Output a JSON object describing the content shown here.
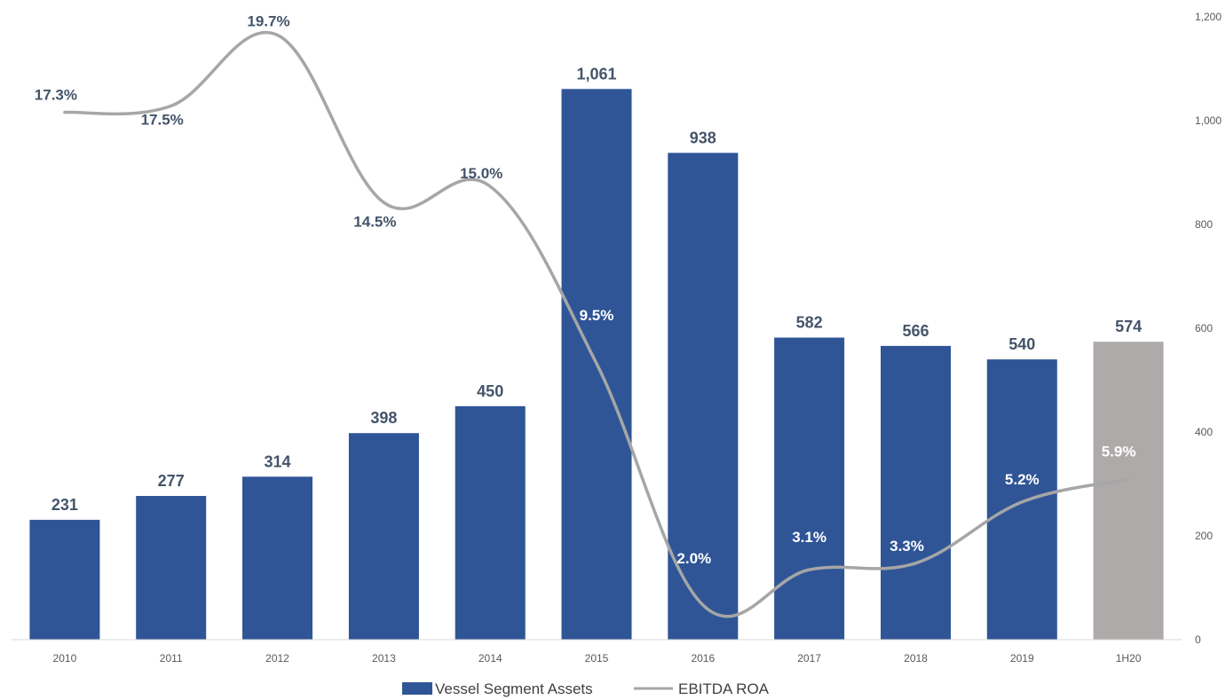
{
  "chart_data": {
    "type": "bar",
    "categories": [
      "2010",
      "2011",
      "2012",
      "2013",
      "2014",
      "2015",
      "2016",
      "2017",
      "2018",
      "2019",
      "1H20"
    ],
    "series": [
      {
        "name": "Vessel Segment Assets",
        "kind": "bar",
        "axis": "right",
        "values": [
          231,
          277,
          314,
          398,
          450,
          1061,
          938,
          582,
          566,
          540,
          574
        ],
        "value_labels": [
          "231",
          "277",
          "314",
          "398",
          "450",
          "1,061",
          "938",
          "582",
          "566",
          "540",
          "574"
        ],
        "color": "#2F5597",
        "highlight_color": "#AEAAAA",
        "highlight_index": 10
      },
      {
        "name": "EBITDA ROA",
        "kind": "line",
        "smooth": true,
        "values": [
          17.3,
          17.5,
          19.7,
          14.5,
          15.0,
          9.5,
          2.0,
          3.1,
          3.3,
          5.2,
          5.9
        ],
        "value_labels": [
          "17.3%",
          "17.5%",
          "19.7%",
          "14.5%",
          "15.0%",
          "9.5%",
          "2.0%",
          "3.1%",
          "3.3%",
          "5.2%",
          "5.9%"
        ],
        "color": "#A6A6A6"
      }
    ],
    "y_right": {
      "min": 0,
      "max": 1200,
      "ticks": [
        "0",
        "200",
        "400",
        "600",
        "800",
        "1,000",
        "1,200"
      ]
    },
    "grid": false,
    "legend": "bottom-center",
    "title": "",
    "xlabel": "",
    "ylabel": ""
  }
}
